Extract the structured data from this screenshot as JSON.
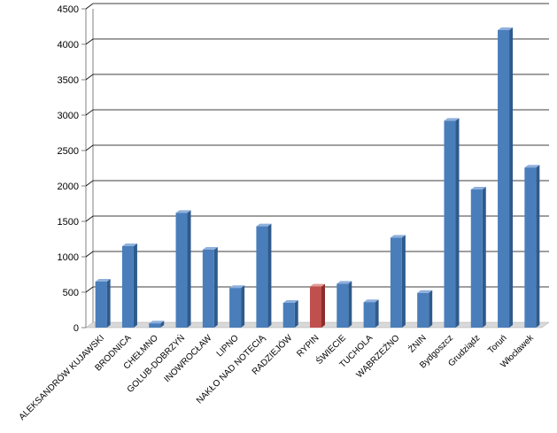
{
  "chart_data": {
    "type": "bar",
    "title": "",
    "xlabel": "",
    "ylabel": "",
    "ylim": [
      0,
      4500
    ],
    "yticks": [
      0,
      500,
      1000,
      1500,
      2000,
      2500,
      3000,
      3500,
      4000,
      4500
    ],
    "grid": true,
    "legend": "none",
    "categories": [
      "ALEKSANDRÓW KUJAWSKI",
      "BRODNICA",
      "CHEŁMNO",
      "GOLUB-DOBRZYŃ",
      "INOWROCŁAW",
      "LIPNO",
      "NAKŁO NAD NOTECIĄ",
      "RADZIEJÓW",
      "RYPIN",
      "ŚWIECIE",
      "TUCHOLA",
      "WĄBRZEŹNO",
      "ŻNIN",
      "Bydgoszcz",
      "Grudziądz",
      "Toruń",
      "Włocławek"
    ],
    "values": [
      650,
      1150,
      60,
      1620,
      1100,
      560,
      1430,
      350,
      580,
      620,
      360,
      1270,
      490,
      2920,
      1950,
      4200,
      2260
    ],
    "highlight_index": 8,
    "colors": {
      "bar_front": "#4a7ebb",
      "bar_side": "#2e5a8c",
      "bar_top": "#8fb0dd",
      "highlight_front": "#c0504d",
      "highlight_side": "#8c2d2a",
      "highlight_top": "#e39a97",
      "grid": "#000000",
      "wall": "#ffffff",
      "floor": "#d9d9d9"
    }
  }
}
